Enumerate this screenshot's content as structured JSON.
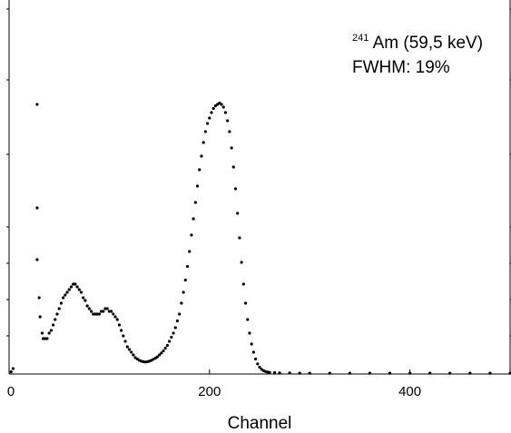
{
  "chart_data": {
    "type": "scatter",
    "title": "",
    "xlabel": "Channel",
    "ylabel": "",
    "xlim": [
      0,
      500
    ],
    "ylim": [
      0,
      1
    ],
    "x_ticks": [
      0,
      200,
      400
    ],
    "x_tick_labels": [
      "0",
      "200",
      "400"
    ],
    "y_tick_labels_shown": false,
    "grid": false,
    "marker_color": "#000000",
    "annotation": {
      "isotope_mass": "241",
      "isotope_rest": "Am (59,5 keV)",
      "fwhm": "FWHM: 19%"
    },
    "series": [
      {
        "points": [
          [
            2,
            0.008
          ],
          [
            4,
            0.02
          ],
          [
            28,
            0.99
          ],
          [
            28,
            0.61
          ],
          [
            28,
            0.42
          ],
          [
            30,
            0.28
          ],
          [
            31,
            0.21
          ],
          [
            33,
            0.15
          ],
          [
            34,
            0.13
          ],
          [
            36,
            0.13
          ],
          [
            38,
            0.13
          ],
          [
            40,
            0.15
          ],
          [
            42,
            0.16
          ],
          [
            44,
            0.18
          ],
          [
            46,
            0.2
          ],
          [
            48,
            0.22
          ],
          [
            50,
            0.24
          ],
          [
            52,
            0.26
          ],
          [
            54,
            0.28
          ],
          [
            56,
            0.29
          ],
          [
            58,
            0.3
          ],
          [
            60,
            0.31
          ],
          [
            62,
            0.32
          ],
          [
            64,
            0.33
          ],
          [
            66,
            0.33
          ],
          [
            68,
            0.32
          ],
          [
            70,
            0.31
          ],
          [
            72,
            0.3
          ],
          [
            74,
            0.28
          ],
          [
            76,
            0.27
          ],
          [
            78,
            0.25
          ],
          [
            80,
            0.24
          ],
          [
            82,
            0.23
          ],
          [
            84,
            0.22
          ],
          [
            86,
            0.22
          ],
          [
            88,
            0.22
          ],
          [
            90,
            0.22
          ],
          [
            92,
            0.23
          ],
          [
            94,
            0.23
          ],
          [
            96,
            0.24
          ],
          [
            98,
            0.24
          ],
          [
            100,
            0.23
          ],
          [
            102,
            0.23
          ],
          [
            104,
            0.22
          ],
          [
            106,
            0.21
          ],
          [
            108,
            0.2
          ],
          [
            110,
            0.18
          ],
          [
            112,
            0.16
          ],
          [
            114,
            0.14
          ],
          [
            116,
            0.12
          ],
          [
            118,
            0.1
          ],
          [
            120,
            0.09
          ],
          [
            122,
            0.08
          ],
          [
            124,
            0.07
          ],
          [
            126,
            0.06
          ],
          [
            128,
            0.055
          ],
          [
            130,
            0.05
          ],
          [
            132,
            0.047
          ],
          [
            134,
            0.045
          ],
          [
            136,
            0.044
          ],
          [
            138,
            0.045
          ],
          [
            140,
            0.047
          ],
          [
            142,
            0.05
          ],
          [
            144,
            0.054
          ],
          [
            146,
            0.058
          ],
          [
            148,
            0.063
          ],
          [
            150,
            0.07
          ],
          [
            152,
            0.077
          ],
          [
            154,
            0.085
          ],
          [
            156,
            0.095
          ],
          [
            158,
            0.105
          ],
          [
            160,
            0.12
          ],
          [
            162,
            0.135
          ],
          [
            164,
            0.15
          ],
          [
            166,
            0.17
          ],
          [
            168,
            0.195
          ],
          [
            170,
            0.22
          ],
          [
            172,
            0.26
          ],
          [
            174,
            0.3
          ],
          [
            176,
            0.345
          ],
          [
            178,
            0.395
          ],
          [
            180,
            0.45
          ],
          [
            182,
            0.51
          ],
          [
            184,
            0.57
          ],
          [
            186,
            0.63
          ],
          [
            188,
            0.69
          ],
          [
            190,
            0.75
          ],
          [
            192,
            0.8
          ],
          [
            194,
            0.85
          ],
          [
            196,
            0.89
          ],
          [
            198,
            0.92
          ],
          [
            200,
            0.94
          ],
          [
            202,
            0.96
          ],
          [
            204,
            0.975
          ],
          [
            206,
            0.985
          ],
          [
            208,
            0.99
          ],
          [
            210,
            0.995
          ],
          [
            212,
            0.99
          ],
          [
            214,
            0.98
          ],
          [
            216,
            0.96
          ],
          [
            218,
            0.93
          ],
          [
            220,
            0.89
          ],
          [
            222,
            0.83
          ],
          [
            224,
            0.76
          ],
          [
            226,
            0.68
          ],
          [
            228,
            0.59
          ],
          [
            230,
            0.5
          ],
          [
            232,
            0.41
          ],
          [
            234,
            0.33
          ],
          [
            236,
            0.26
          ],
          [
            238,
            0.2
          ],
          [
            240,
            0.15
          ],
          [
            242,
            0.11
          ],
          [
            244,
            0.08
          ],
          [
            246,
            0.055
          ],
          [
            248,
            0.037
          ],
          [
            250,
            0.025
          ],
          [
            252,
            0.017
          ],
          [
            254,
            0.012
          ],
          [
            256,
            0.009
          ],
          [
            258,
            0.007
          ],
          [
            260,
            0.006
          ],
          [
            265,
            0.005
          ],
          [
            270,
            0.004
          ],
          [
            280,
            0.004
          ],
          [
            290,
            0.003
          ],
          [
            300,
            0.003
          ],
          [
            320,
            0.003
          ],
          [
            340,
            0.003
          ],
          [
            360,
            0.003
          ],
          [
            380,
            0.003
          ],
          [
            400,
            0.003
          ],
          [
            420,
            0.003
          ],
          [
            440,
            0.003
          ],
          [
            460,
            0.003
          ],
          [
            480,
            0.003
          ],
          [
            500,
            0.003
          ]
        ]
      }
    ]
  }
}
